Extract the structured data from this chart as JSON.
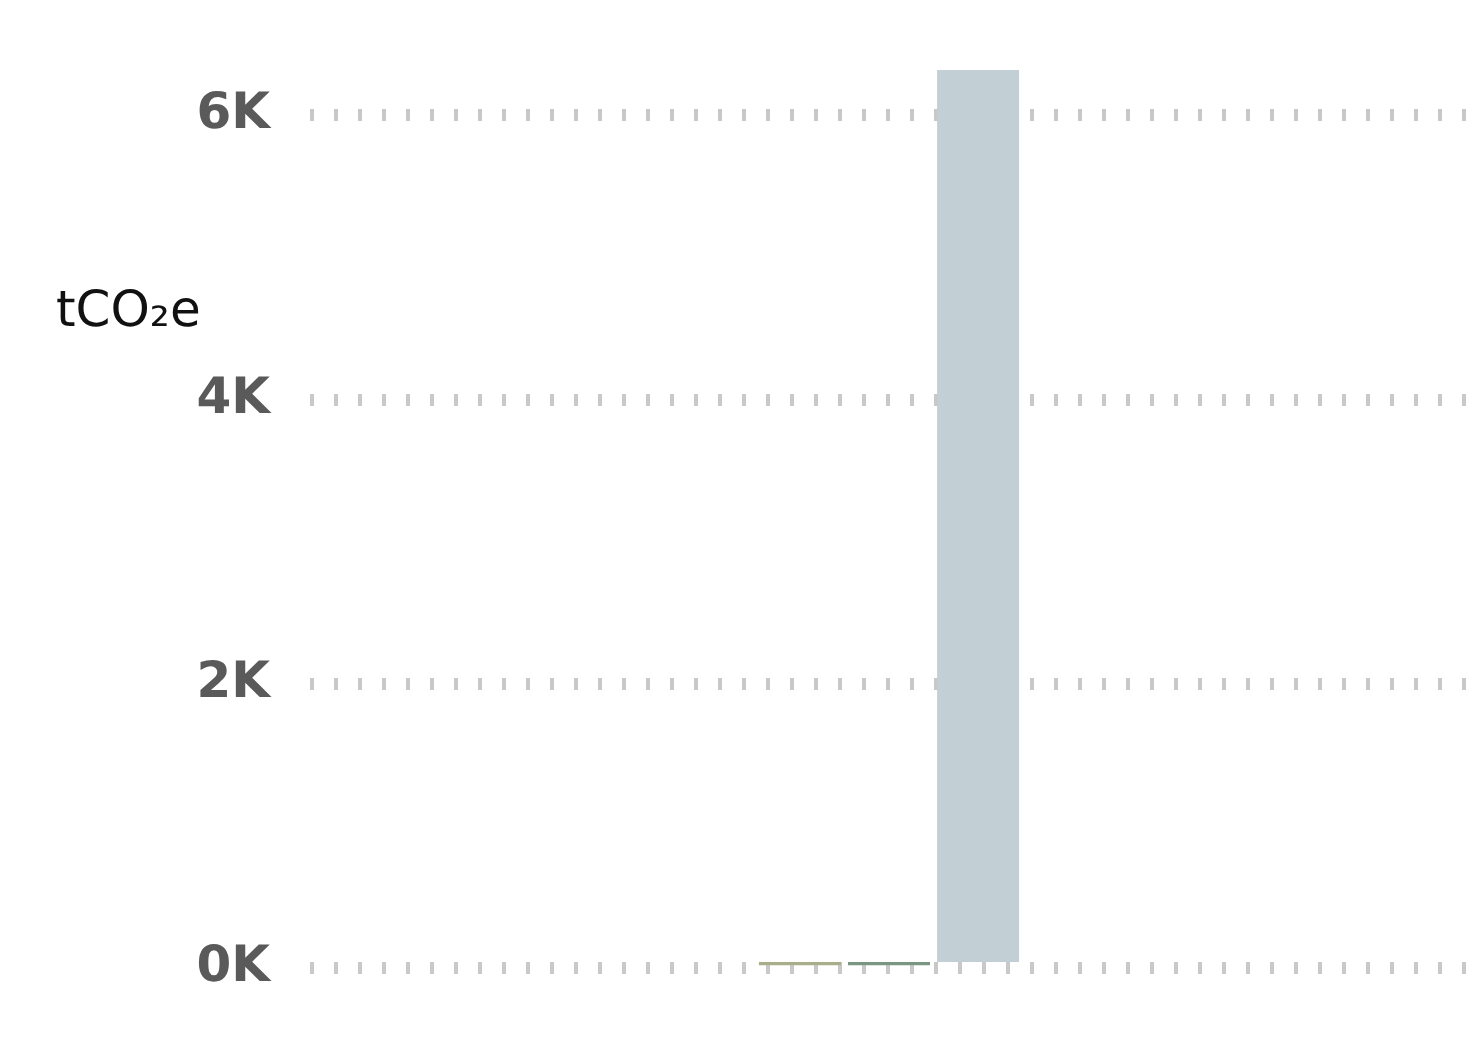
{
  "chart_data": {
    "type": "bar",
    "ylabel": "tCO₂e",
    "categories": [
      null,
      null,
      null,
      null,
      null,
      null,
      null,
      null,
      null,
      null,
      null,
      null,
      null
    ],
    "values": [
      null,
      null,
      null,
      null,
      null,
      20,
      20,
      6320,
      null,
      null,
      null,
      null,
      null
    ],
    "colors": [
      "#c2cfd5",
      "#c2cfd5",
      "#c2cfd5",
      "#c2cfd5",
      "#c2cfd5",
      "#a8ad8a",
      "#7a9580",
      "#c2cfd5",
      "#c2cfd5",
      "#c2cfd5",
      "#c2cfd5",
      "#c2cfd5",
      "#c2cfd5"
    ],
    "ylim": [
      0,
      6320
    ],
    "yticks": [
      {
        "value": 0,
        "label": "0K"
      },
      {
        "value": 2000,
        "label": "2K"
      },
      {
        "value": 4000,
        "label": "4K"
      },
      {
        "value": 6000,
        "label": "6K"
      }
    ],
    "grid": "y",
    "legend": false,
    "tick_labels": "y"
  }
}
